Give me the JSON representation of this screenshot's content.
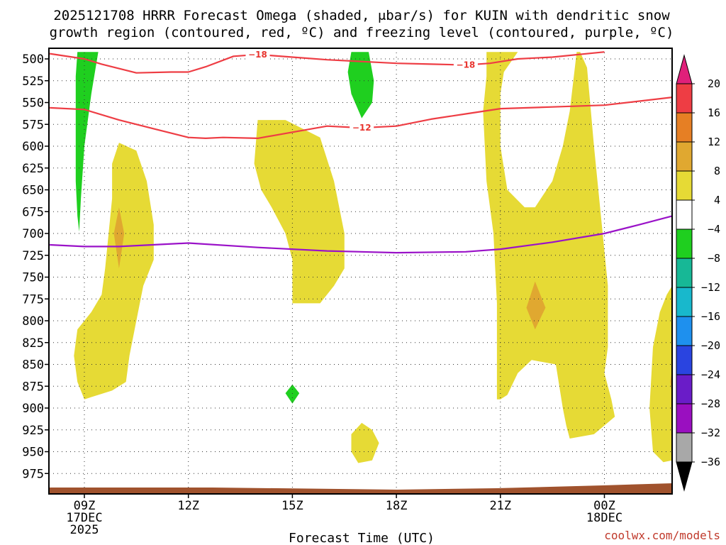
{
  "chart_data": {
    "type": "contour",
    "title_line1": "2025121708 HRRR Forecast Omega (shaded, μbar/s) for KUIN with dendritic snow",
    "title_line2": "growth region (contoured, red, ºC) and freezing level (contoured, purple, ºC)",
    "xlabel": "Forecast Time (UTC)",
    "credit": "coolwx.com/models",
    "x_ticks": [
      {
        "hour": 9,
        "lines": [
          "09Z",
          "17DEC",
          "2025"
        ]
      },
      {
        "hour": 12,
        "lines": [
          "12Z"
        ]
      },
      {
        "hour": 15,
        "lines": [
          "15Z"
        ]
      },
      {
        "hour": 18,
        "lines": [
          "18Z"
        ]
      },
      {
        "hour": 21,
        "lines": [
          "21Z"
        ]
      },
      {
        "hour": 24,
        "lines": [
          "00Z",
          "18DEC"
        ]
      }
    ],
    "x_range_hours": [
      8,
      26
    ],
    "y_ticks": [
      500,
      525,
      550,
      575,
      600,
      625,
      650,
      675,
      700,
      725,
      750,
      775,
      800,
      825,
      850,
      875,
      900,
      925,
      950,
      975
    ],
    "y_range_mb": [
      492,
      990
    ],
    "colorbar": {
      "levels": [
        "20",
        "16",
        "12",
        "8",
        "4",
        "−4",
        "−8",
        "−12",
        "−16",
        "−20",
        "−24",
        "−28",
        "−32",
        "−36"
      ],
      "colors": [
        "#ee3d44",
        "#e67f24",
        "#e0a830",
        "#e6da35",
        "#ffffff",
        "#1fcf1f",
        "#17b896",
        "#18b8cc",
        "#1e90ee",
        "#2a44e0",
        "#6a1cc8",
        "#9a0fc0",
        "#a8a8a8"
      ],
      "top_arrow_color": "#e0207a",
      "bottom_arrow_color": "#000000"
    },
    "colors": {
      "omega_4_8": "#e6da35",
      "omega_8_12": "#e0a830",
      "omega_neg4_neg8": "#1fcf1f",
      "dgz_contour": "#ee3d44",
      "freezing_contour": "#9a12c8",
      "terrain": "#a0522d"
    },
    "contours": {
      "minus18": {
        "label": "−18",
        "points": [
          [
            8.0,
            494
          ],
          [
            9.0,
            500
          ],
          [
            9.5,
            506
          ],
          [
            10.5,
            516
          ],
          [
            11.5,
            515
          ],
          [
            12.0,
            515
          ],
          [
            12.5,
            509
          ],
          [
            13.3,
            497
          ],
          [
            14.0,
            495
          ],
          [
            15.0,
            498
          ],
          [
            16.0,
            501
          ],
          [
            17.0,
            503
          ],
          [
            18.0,
            505
          ],
          [
            19.0,
            506
          ],
          [
            20.0,
            507
          ],
          [
            20.7,
            505
          ],
          [
            21.5,
            500
          ],
          [
            22.5,
            498
          ],
          [
            24.0,
            492
          ]
        ]
      },
      "minus12": {
        "label": "−12",
        "points": [
          [
            8.0,
            556
          ],
          [
            9.0,
            558
          ],
          [
            10.0,
            570
          ],
          [
            11.0,
            580
          ],
          [
            12.0,
            590
          ],
          [
            12.5,
            591
          ],
          [
            13.0,
            590
          ],
          [
            14.0,
            591
          ],
          [
            15.0,
            584
          ],
          [
            16.0,
            577
          ],
          [
            17.0,
            579
          ],
          [
            18.0,
            577
          ],
          [
            19.0,
            569
          ],
          [
            20.0,
            563
          ],
          [
            21.0,
            557
          ],
          [
            22.5,
            555
          ],
          [
            24.0,
            553
          ],
          [
            26.0,
            544
          ]
        ]
      },
      "freezing": {
        "points": [
          [
            8.0,
            713
          ],
          [
            9.0,
            715
          ],
          [
            10.0,
            715
          ],
          [
            12.0,
            711
          ],
          [
            14.0,
            716
          ],
          [
            16.0,
            720
          ],
          [
            18.0,
            722
          ],
          [
            20.0,
            721
          ],
          [
            21.0,
            718
          ],
          [
            22.5,
            710
          ],
          [
            24.0,
            700
          ],
          [
            25.0,
            690
          ],
          [
            26.0,
            680
          ]
        ]
      }
    },
    "regions": [
      {
        "name": "omega-region-yellow-early",
        "level": "4 to 8",
        "points": [
          [
            10.0,
            596
          ],
          [
            10.5,
            605
          ],
          [
            10.8,
            640
          ],
          [
            11.0,
            690
          ],
          [
            11.0,
            730
          ],
          [
            10.7,
            760
          ],
          [
            10.5,
            800
          ],
          [
            10.3,
            840
          ],
          [
            10.2,
            870
          ],
          [
            9.8,
            880
          ],
          [
            9.4,
            885
          ],
          [
            9.0,
            890
          ],
          [
            8.8,
            870
          ],
          [
            8.7,
            840
          ],
          [
            8.8,
            810
          ],
          [
            9.2,
            790
          ],
          [
            9.5,
            770
          ],
          [
            9.6,
            740
          ],
          [
            9.7,
            700
          ],
          [
            9.8,
            660
          ],
          [
            9.8,
            620
          ]
        ]
      },
      {
        "name": "omega-region-orange-early",
        "level": "8 to 12",
        "points": [
          [
            10.0,
            670
          ],
          [
            10.15,
            700
          ],
          [
            10.0,
            740
          ],
          [
            9.85,
            700
          ]
        ]
      },
      {
        "name": "omega-region-yellow-mid",
        "level": "4 to 8",
        "points": [
          [
            14.0,
            570
          ],
          [
            14.8,
            570
          ],
          [
            15.8,
            590
          ],
          [
            16.2,
            640
          ],
          [
            16.5,
            700
          ],
          [
            16.5,
            740
          ],
          [
            16.2,
            760
          ],
          [
            15.8,
            780
          ],
          [
            15.0,
            780
          ],
          [
            15.0,
            730
          ],
          [
            14.8,
            700
          ],
          [
            14.4,
            670
          ],
          [
            14.1,
            650
          ],
          [
            13.9,
            620
          ]
        ]
      },
      {
        "name": "omega-region-yellow-small",
        "level": "4 to 8",
        "points": [
          [
            17.0,
            917
          ],
          [
            17.3,
            925
          ],
          [
            17.5,
            940
          ],
          [
            17.3,
            960
          ],
          [
            16.9,
            963
          ],
          [
            16.7,
            950
          ],
          [
            16.7,
            930
          ]
        ]
      },
      {
        "name": "omega-region-yellow-right",
        "level": "4 to 8",
        "points": [
          [
            20.6,
            492
          ],
          [
            21.5,
            492
          ],
          [
            21.1,
            515
          ],
          [
            21.0,
            540
          ],
          [
            21.0,
            600
          ],
          [
            21.2,
            650
          ],
          [
            21.7,
            670
          ],
          [
            22.0,
            670
          ],
          [
            22.5,
            640
          ],
          [
            22.8,
            600
          ],
          [
            23.0,
            560
          ],
          [
            23.2,
            492
          ],
          [
            23.3,
            492
          ],
          [
            23.5,
            510
          ],
          [
            23.7,
            600
          ],
          [
            24.1,
            760
          ],
          [
            24.1,
            830
          ],
          [
            24.0,
            860
          ],
          [
            24.2,
            890
          ],
          [
            24.3,
            910
          ],
          [
            23.7,
            930
          ],
          [
            23.0,
            935
          ],
          [
            22.9,
            920
          ],
          [
            22.8,
            900
          ],
          [
            22.6,
            850
          ],
          [
            21.9,
            845
          ],
          [
            21.5,
            860
          ],
          [
            21.2,
            885
          ],
          [
            21.0,
            890
          ],
          [
            20.9,
            890
          ],
          [
            20.9,
            820
          ],
          [
            20.9,
            780
          ],
          [
            20.8,
            700
          ],
          [
            20.6,
            640
          ],
          [
            20.5,
            560
          ],
          [
            20.6,
            520
          ]
        ]
      },
      {
        "name": "omega-region-orange-right",
        "level": "8 to 12",
        "points": [
          [
            22.0,
            755
          ],
          [
            22.3,
            785
          ],
          [
            22.0,
            810
          ],
          [
            21.75,
            785
          ]
        ]
      },
      {
        "name": "omega-region-yellow-edge",
        "level": "4 to 8",
        "points": [
          [
            26.0,
            760
          ],
          [
            26.0,
            960
          ],
          [
            25.7,
            962
          ],
          [
            25.4,
            950
          ],
          [
            25.3,
            900
          ],
          [
            25.4,
            830
          ],
          [
            25.6,
            790
          ],
          [
            25.8,
            770
          ]
        ]
      },
      {
        "name": "omega-region-orange-edge",
        "level": "8 to 12",
        "points": [
          [
            26.0,
            855
          ],
          [
            25.9,
            870
          ],
          [
            26.0,
            885
          ]
        ]
      },
      {
        "name": "omega-region-green-left",
        "level": "-4 to -8",
        "points": [
          [
            8.8,
            492
          ],
          [
            9.4,
            492
          ],
          [
            9.2,
            540
          ],
          [
            9.0,
            600
          ],
          [
            8.9,
            660
          ],
          [
            8.85,
            698
          ],
          [
            8.8,
            680
          ],
          [
            8.75,
            640
          ],
          [
            8.75,
            560
          ],
          [
            8.75,
            520
          ]
        ]
      },
      {
        "name": "omega-region-green-mid",
        "level": "-4 to -8",
        "points": [
          [
            16.7,
            492
          ],
          [
            17.2,
            492
          ],
          [
            17.35,
            525
          ],
          [
            17.3,
            550
          ],
          [
            17.0,
            568
          ],
          [
            16.7,
            540
          ],
          [
            16.6,
            515
          ]
        ]
      },
      {
        "name": "omega-region-green-small",
        "level": "-4 to -8",
        "points": [
          [
            15.0,
            873
          ],
          [
            15.2,
            883
          ],
          [
            15.0,
            895
          ],
          [
            14.8,
            883
          ]
        ]
      }
    ]
  }
}
